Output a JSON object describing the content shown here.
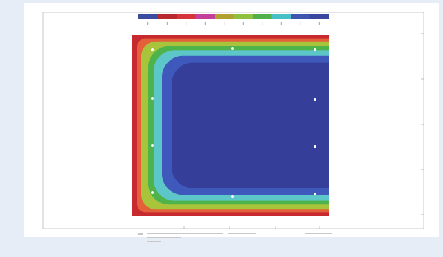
{
  "colorbar": [
    "#3b4ba0",
    "#b8282e",
    "#d6343a",
    "#c2409a",
    "#b0a030",
    "#8fc040",
    "#52b04a",
    "#48c0c8",
    "#3f55b0",
    "#39479e"
  ],
  "contour_bands": [
    "#c62a2f",
    "#e4603a",
    "#a8c43a",
    "#4fb34c",
    "#5cc6c8",
    "#3f58bc",
    "#353f99"
  ]
}
